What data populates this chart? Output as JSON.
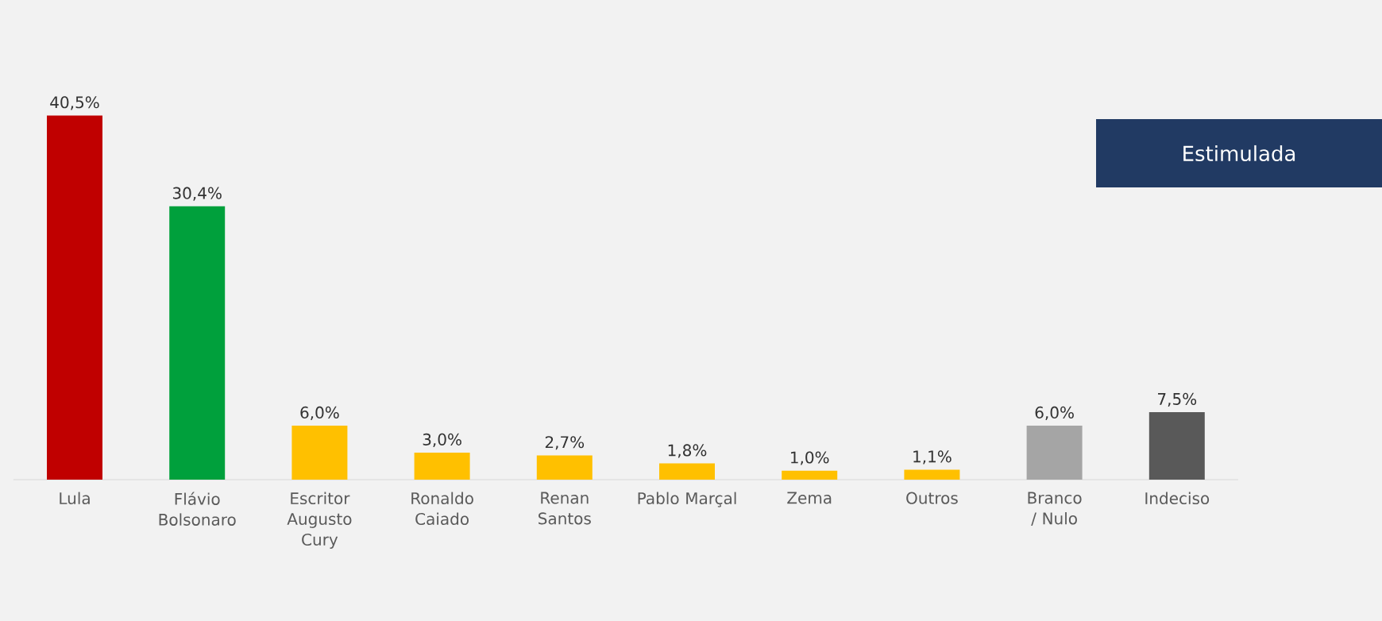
{
  "chart_data": {
    "type": "bar",
    "categories": [
      "Lula",
      "Flávio Bolsonaro",
      "Escritor Augusto Cury",
      "Ronaldo Caiado",
      "Renan Santos",
      "Pablo Marçal",
      "Zema",
      "Outros",
      "Branco / Nulo",
      "Indeciso"
    ],
    "values": [
      40.5,
      30.4,
      6.0,
      3.0,
      2.7,
      1.8,
      1.0,
      1.1,
      6.0,
      7.5
    ],
    "value_labels": [
      "40,5%",
      "30,4%",
      "6,0%",
      "3,0%",
      "2,7%",
      "1,8%",
      "1,0%",
      "1,1%",
      "6,0%",
      "7,5%"
    ],
    "colors": [
      "#c00000",
      "#00a03c",
      "#ffc000",
      "#ffc000",
      "#ffc000",
      "#ffc000",
      "#ffc000",
      "#ffc000",
      "#a5a5a5",
      "#595959"
    ],
    "annotations": [
      "Estimulada"
    ]
  }
}
